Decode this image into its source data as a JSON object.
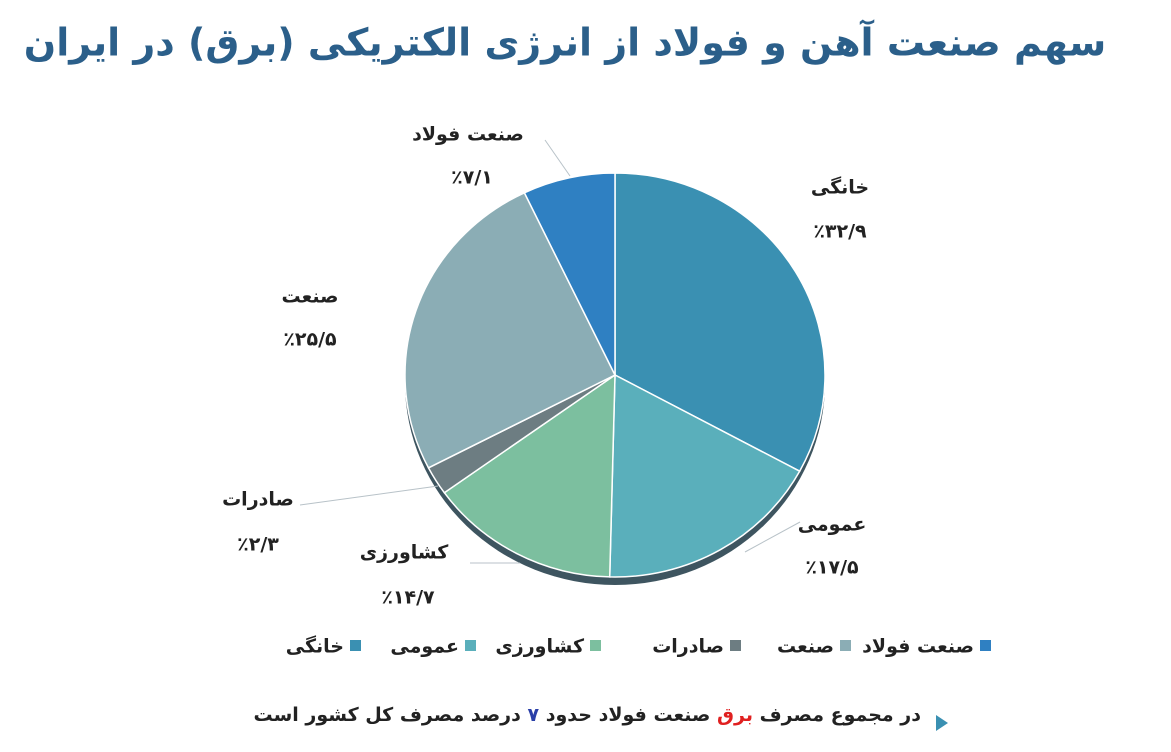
{
  "chart_data": {
    "type": "pie",
    "title": "سهم صنعت آهن و فولاد از انرژی الکتریکی (برق) در ایران",
    "categories": [
      "خانگی",
      "عمومی",
      "کشاورزی",
      "صادرات",
      "صنعت",
      "صنعت فولاد"
    ],
    "values": [
      32.9,
      17.5,
      14.7,
      2.3,
      25.5,
      7.1
    ],
    "value_labels": [
      "٪۳۲/۹",
      "٪۱۷/۵",
      "٪۱۴/۷",
      "٪۲/۳",
      "٪۲۵/۵",
      "٪۷/۱"
    ],
    "colors": [
      "#3a90b2",
      "#5aafbb",
      "#7cbf9f",
      "#6d7d82",
      "#8badb5",
      "#2f80c2"
    ],
    "annotation_parts": [
      "در مجموع مصرف",
      "برق",
      "صنعت فولاد حدود",
      "۷",
      "درصد مصرف کل کشور است"
    ]
  }
}
